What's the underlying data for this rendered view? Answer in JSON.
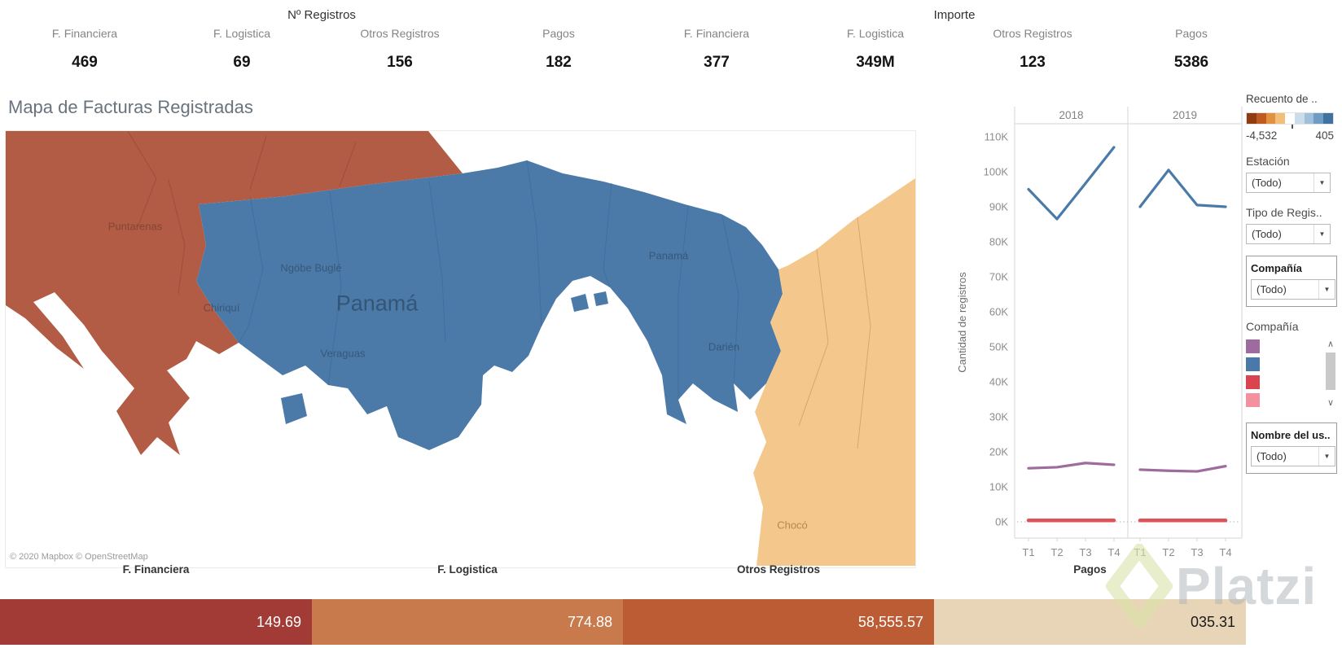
{
  "kpi": {
    "groups": [
      {
        "title": "Nº Registros",
        "items": [
          {
            "label": "F. Financiera",
            "value": "469"
          },
          {
            "label": "F. Logistica",
            "value": "69"
          },
          {
            "label": "Otros Registros",
            "value": "156"
          },
          {
            "label": "Pagos",
            "value": "182"
          }
        ]
      },
      {
        "title": "Importe",
        "items": [
          {
            "label": "F. Financiera",
            "value": "377"
          },
          {
            "label": "F. Logistica",
            "value": "349M"
          },
          {
            "label": "Otros Registros",
            "value": "123"
          },
          {
            "label": "Pagos",
            "value": "5386"
          }
        ]
      }
    ]
  },
  "map": {
    "title": "Mapa de Facturas Registradas",
    "attribution": "© 2020 Mapbox © OpenStreetMap",
    "colors": {
      "costa_rica": "#b25b45",
      "panama": "#4b79a8",
      "colombia": "#f4c78c"
    },
    "labels": {
      "puntarenas": "Puntarenas",
      "chiriqui": "Chiriquí",
      "ngobe": "Ngöbe Buglé",
      "panama_big": "Panamá",
      "veraguas": "Veraguas",
      "panama_small": "Panamá",
      "darien": "Darién",
      "choco": "Chocó"
    }
  },
  "chart_data": {
    "type": "line",
    "title": "",
    "xlabel": "",
    "ylabel": "Cantidad de registros",
    "ylim": [
      0,
      110000
    ],
    "ytick_labels": [
      "0K",
      "10K",
      "20K",
      "30K",
      "40K",
      "50K",
      "60K",
      "70K",
      "80K",
      "90K",
      "100K",
      "110K"
    ],
    "panels": [
      "2018",
      "2019"
    ],
    "categories": [
      "T1",
      "T2",
      "T3",
      "T4"
    ],
    "grid": false,
    "legend_position": "none",
    "series": [
      {
        "name": "blue",
        "color": "#4a7aa8",
        "values": {
          "2018": [
            95000,
            86500,
            96700,
            107000
          ],
          "2019": [
            90000,
            100500,
            90500,
            90000
          ]
        }
      },
      {
        "name": "purple",
        "color": "#9e6b9e",
        "values": {
          "2018": [
            15300,
            15600,
            16800,
            16300
          ],
          "2019": [
            14900,
            14600,
            14400,
            15900
          ]
        }
      },
      {
        "name": "red",
        "color": "#e0525a",
        "values": {
          "2018": [
            400,
            400,
            400,
            400
          ],
          "2019": [
            400,
            400,
            400,
            400
          ]
        }
      }
    ]
  },
  "sidebar": {
    "legend_recuento": {
      "title": "Recuento de ..",
      "min_label": "-4,532",
      "max_label": "405",
      "colors": [
        "#903c10",
        "#bf5b21",
        "#e2913e",
        "#f3bd7a",
        "#ffffff",
        "#cbdceb",
        "#9fc0d8",
        "#6e9cc4",
        "#3f729e"
      ]
    },
    "filters": [
      {
        "title": "Estación",
        "value": "(Todo)"
      },
      {
        "title": "Tipo de Regis..",
        "value": "(Todo)"
      },
      {
        "title": "Compañía",
        "value": "(Todo)"
      },
      {
        "title": "Nombre del us..",
        "value": "(Todo)"
      }
    ],
    "legend_compania": {
      "title": "Compañía",
      "swatches": [
        "#9e6b9e",
        "#4a78a8",
        "#d9444f",
        "#f4919e"
      ]
    }
  },
  "bottom_bar": {
    "segments": [
      {
        "label": "F. Financiera",
        "value": "149.69",
        "color": "#a23b35",
        "text_color": "#ffffff"
      },
      {
        "label": "F. Logistica",
        "value": "774.88",
        "color": "#c87a4c",
        "text_color": "#ffffff"
      },
      {
        "label": "Otros Registros",
        "value": "58,555.57",
        "color": "#bb5c34",
        "text_color": "#ffffff"
      },
      {
        "label": "Pagos",
        "value": "035.31",
        "color": "#e8d4b6",
        "text_color": "#1a1a1a"
      }
    ]
  },
  "watermark": {
    "text": "Platzi"
  }
}
